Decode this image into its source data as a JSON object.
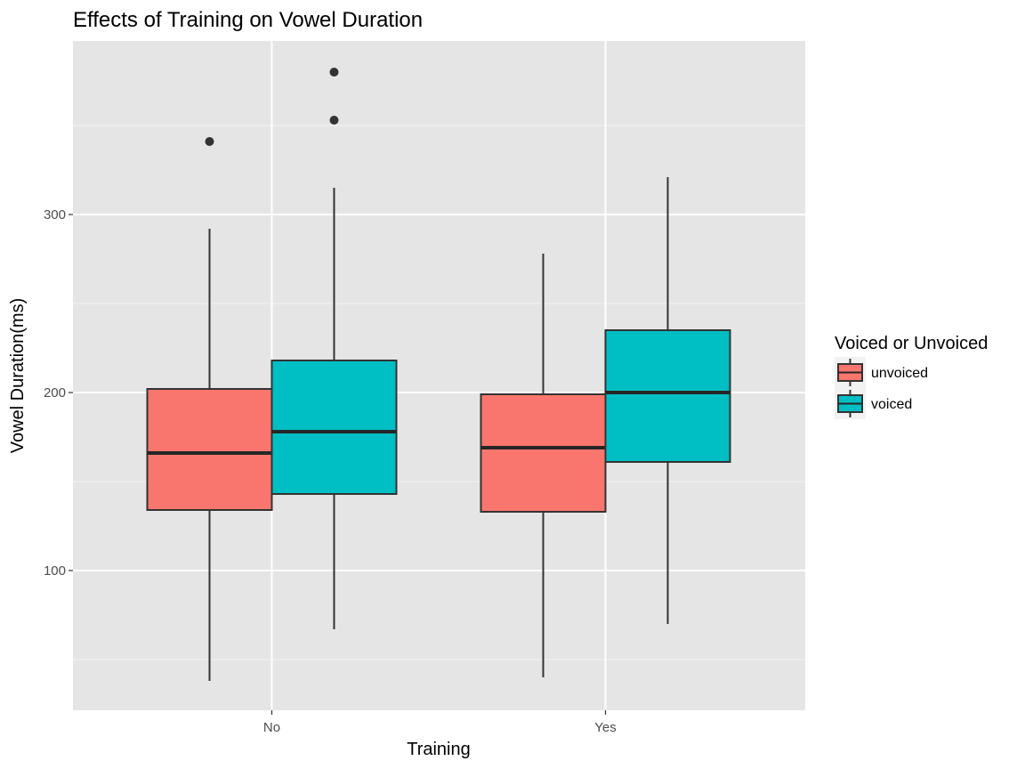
{
  "chart_data": {
    "type": "boxplot",
    "title": "Effects of Training on Vowel Duration",
    "xlabel": "Training",
    "ylabel": "Vowel Duration(ms)",
    "ylim": [
      21.5,
      378
    ],
    "y_ticks": [
      100,
      200,
      300
    ],
    "grid": true,
    "legend": {
      "title": "Voiced or Unvoiced",
      "position": "right"
    },
    "categories": [
      "No",
      "Yes"
    ],
    "series": [
      {
        "name": "unvoiced",
        "color": "#F8766D",
        "boxes": [
          {
            "category": "No",
            "lower_whisker": 38,
            "q1": 134,
            "median": 166,
            "q3": 202,
            "upper_whisker": 292,
            "outliers": [
              341
            ]
          },
          {
            "category": "Yes",
            "lower_whisker": 40,
            "q1": 133,
            "median": 169,
            "q3": 199,
            "upper_whisker": 278,
            "outliers": []
          }
        ]
      },
      {
        "name": "voiced",
        "color": "#00BFC4",
        "boxes": [
          {
            "category": "No",
            "lower_whisker": 67,
            "q1": 143,
            "median": 178,
            "q3": 218,
            "upper_whisker": 315,
            "outliers": [
              353,
              380
            ]
          },
          {
            "category": "Yes",
            "lower_whisker": 70,
            "q1": 161,
            "median": 200,
            "q3": 235,
            "upper_whisker": 321,
            "outliers": []
          }
        ]
      }
    ]
  }
}
